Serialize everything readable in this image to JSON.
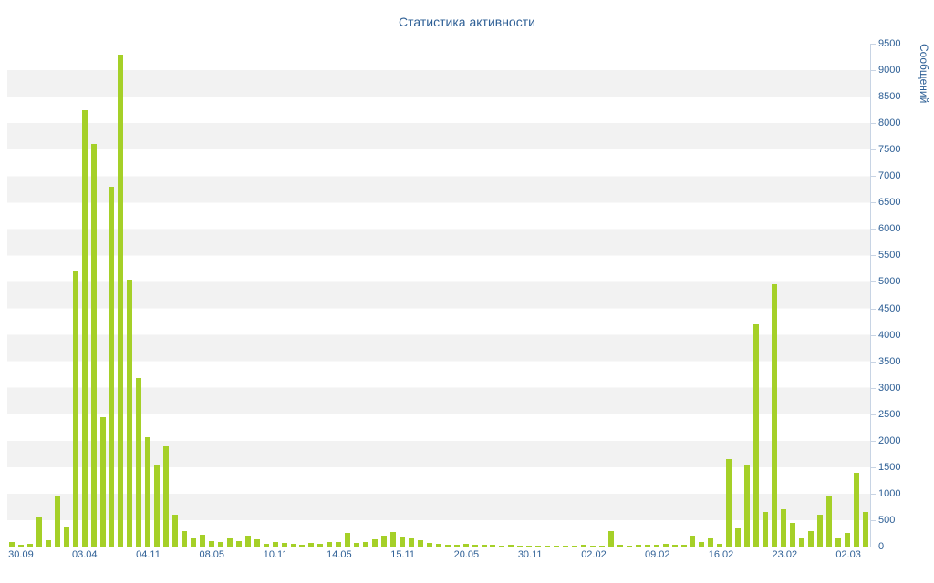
{
  "chart_data": {
    "type": "bar",
    "title": "Статистика активности",
    "xlabel": "",
    "ylabel": "Сообщений",
    "ylim": [
      0,
      9500
    ],
    "y_tick_step": 500,
    "grid": "horizontal-stripes",
    "legend": "none",
    "y_ticks": [
      0,
      500,
      1000,
      1500,
      2000,
      2500,
      3000,
      3500,
      4000,
      4500,
      5000,
      5500,
      6000,
      6500,
      7000,
      7500,
      8000,
      8500,
      9000,
      9500
    ],
    "x_ticks": [
      {
        "slot": 1,
        "label": "30.09"
      },
      {
        "slot": 8,
        "label": "03.04"
      },
      {
        "slot": 15,
        "label": "04.11"
      },
      {
        "slot": 22,
        "label": "08.05"
      },
      {
        "slot": 29,
        "label": "10.11"
      },
      {
        "slot": 36,
        "label": "14.05"
      },
      {
        "slot": 43,
        "label": "15.11"
      },
      {
        "slot": 50,
        "label": "20.05"
      },
      {
        "slot": 57,
        "label": "30.11"
      },
      {
        "slot": 64,
        "label": "02.02"
      },
      {
        "slot": 71,
        "label": "09.02"
      },
      {
        "slot": 78,
        "label": "16.02"
      },
      {
        "slot": 85,
        "label": "23.02"
      },
      {
        "slot": 92,
        "label": "02.03"
      }
    ],
    "num_slots": 95,
    "values": [
      80,
      30,
      60,
      550,
      120,
      950,
      380,
      5200,
      8250,
      7600,
      2450,
      6800,
      9300,
      5050,
      3180,
      2060,
      1550,
      1900,
      600,
      300,
      160,
      230,
      110,
      80,
      150,
      100,
      200,
      130,
      60,
      90,
      70,
      50,
      40,
      70,
      60,
      90,
      80,
      250,
      70,
      90,
      140,
      200,
      280,
      180,
      160,
      120,
      70,
      50,
      40,
      30,
      60,
      40,
      30,
      30,
      25,
      30,
      25,
      20,
      25,
      20,
      20,
      25,
      20,
      30,
      20,
      25,
      300,
      40,
      25,
      30,
      30,
      30,
      60,
      40,
      30,
      200,
      90,
      150,
      60,
      1650,
      350,
      1550,
      4200,
      650,
      4950,
      700,
      450,
      150,
      300,
      600,
      950,
      150,
      250,
      1400,
      650
    ],
    "colors": {
      "bar": "#a5d028",
      "text": "#2f6096",
      "stripe": "#f2f2f2",
      "axis": "#c8d4e4",
      "background": "#ffffff"
    }
  }
}
